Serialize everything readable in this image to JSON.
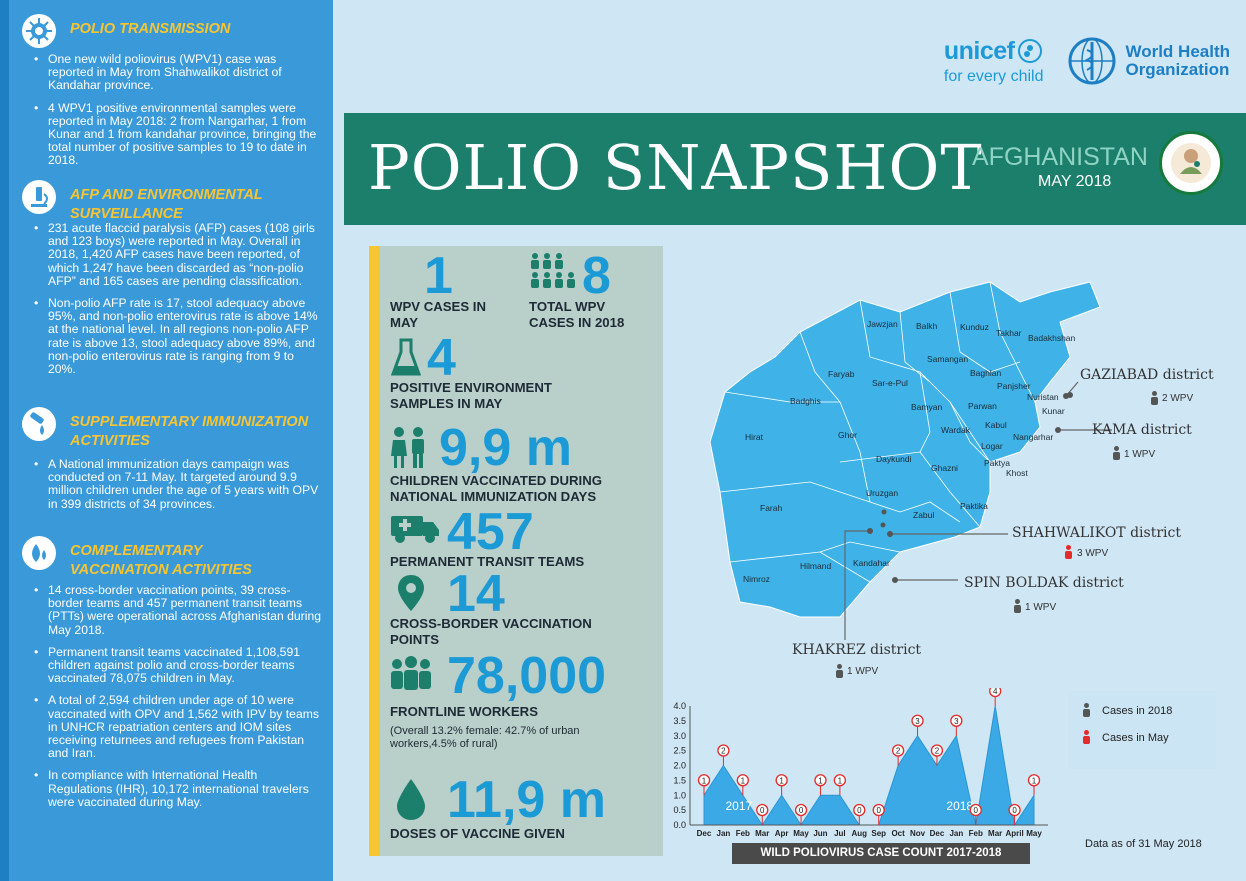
{
  "logos": {
    "unicef_name": "unicef",
    "unicef_tagline": "for every child",
    "who_line1": "World Health",
    "who_line2": "Organization"
  },
  "banner": {
    "title": "POLIO SNAPSHOT",
    "country": "AFGHANISTAN",
    "date": "MAY 2018"
  },
  "sidebar": {
    "sections": [
      {
        "icon": "virus-icon",
        "title": "POLIO TRANSMISSION",
        "items": [
          "One new wild poliovirus (WPV1) case was reported in May from Shahwalikot district of Kandahar province.",
          "4 WPV1 positive environmental samples were reported in May 2018: 2 from Nangarhar, 1 from Kunar and 1 from kandahar province, bringing the total number of positive samples to 19 to date in 2018."
        ]
      },
      {
        "icon": "microscope-icon",
        "title": "AFP AND ENVIRONMENTAL SURVEILLANCE",
        "items": [
          "231 acute flaccid paralysis (AFP) cases (108 girls and 123 boys) were reported in May. Overall in 2018, 1,420 AFP cases have been reported, of which 1,247 have been discarded as “non-polio AFP” and 165 cases are pending classification.",
          "Non-polio AFP rate is 17, stool adequacy above 95%, and non-polio enterovirus rate is above 14% at the national level. In all regions non-polio AFP rate is above 13, stool adequacy above 89%, and non-polio enterovirus rate is ranging from 9 to 20%."
        ]
      },
      {
        "icon": "drop-vaccine-icon",
        "title": "SUPPLEMENTARY IMMUNIZATION ACTIVITIES",
        "items": [
          "A National immunization days campaign was conducted on 7-11 May. It targeted around 9.9 million children under the age of 5 years with OPV in 399 districts of 34 provinces."
        ]
      },
      {
        "icon": "drops-icon",
        "title": "COMPLEMENTARY VACCINATION ACTIVITIES",
        "items": [
          "14 cross-border vaccination points, 39 cross-border teams and 457 permanent transit teams (PTTs) were operational across Afghanistan during May 2018.",
          "Permanent transit teams vaccinated 1,108,591 children against polio and cross-border teams vaccinated 78,075 children in May.",
          "A total of 2,594 children under age of 10 were vaccinated with OPV and 1,562 with IPV by teams in UNHCR repatriation centers and IOM sites receiving returnees and refugees from Pakistan and Iran.",
          "In compliance with International Health Regulations (IHR), 10,172 international travelers were vaccinated during May."
        ]
      }
    ]
  },
  "stats": {
    "wpv_may": {
      "value": "1",
      "label": "WPV CASES IN MAY"
    },
    "wpv_total": {
      "value": "8",
      "label": "TOTAL WPV CASES IN 2018"
    },
    "env": {
      "value": "4",
      "label": "POSITIVE ENVIRONMENT SAMPLES IN MAY"
    },
    "vaccinated": {
      "value": "9,9 m",
      "label": "CHILDREN VACCINATED DURING NATIONAL IMMUNIZATION DAYS"
    },
    "transit": {
      "value": "457",
      "label": "PERMANENT TRANSIT TEAMS"
    },
    "cross": {
      "value": "14",
      "label": "CROSS-BORDER VACCINATION POINTS"
    },
    "workers": {
      "value": "78,000",
      "label": "FRONTLINE WORKERS",
      "note": "(Overall 13.2% female: 42.7% of urban workers,4.5% of rural)"
    },
    "doses": {
      "value": "11,9 m",
      "label": "DOSES OF VACCINE GIVEN"
    }
  },
  "map": {
    "provinces": [
      "Jawzjan",
      "Balkh",
      "Kunduz",
      "Takhar",
      "Badakhshan",
      "Faryab",
      "Samangan",
      "Sar-e-Pul",
      "Baghlan",
      "Panjsher",
      "Nuristan",
      "Badghis",
      "Bamyan",
      "Parwan",
      "Kunar",
      "Hirat",
      "Ghor",
      "Wardak",
      "Kabul",
      "Nangarhar",
      "Logar",
      "Daykundi",
      "Paktya",
      "Ghazni",
      "Khost",
      "Uruzgan",
      "Paktika",
      "Farah",
      "Zabul",
      "Nimroz",
      "Hilmand",
      "Kandahar"
    ],
    "districts": [
      {
        "name": "GAZIABAD district",
        "cases": "2 WPV",
        "status": "2018"
      },
      {
        "name": "KAMA district",
        "cases": "1 WPV",
        "status": "2018"
      },
      {
        "name": "SHAHWALIKOT district",
        "cases": "3 WPV",
        "status": "May"
      },
      {
        "name": "SPIN BOLDAK district",
        "cases": "1 WPV",
        "status": "2018"
      },
      {
        "name": "KHAKREZ district",
        "cases": "1 WPV",
        "status": "2018"
      }
    ]
  },
  "legend": {
    "cases_2018": "Cases in 2018",
    "cases_may": "Cases in May"
  },
  "chart_data": {
    "type": "area",
    "title": "WILD POLIOVIRUS CASE COUNT 2017-2018",
    "categories": [
      "Dec",
      "Jan",
      "Feb",
      "Mar",
      "Apr",
      "May",
      "Jun",
      "Jul",
      "Aug",
      "Sep",
      "Oct",
      "Nov",
      "Dec",
      "Jan",
      "Feb",
      "Mar",
      "April",
      "May"
    ],
    "values": [
      1,
      2,
      1,
      0,
      1,
      0,
      1,
      1,
      0,
      0,
      2,
      3,
      2,
      3,
      0,
      4,
      0,
      1
    ],
    "year_labels": [
      "2017",
      "2018"
    ],
    "ylim": [
      0,
      4
    ],
    "yticks": [
      "0.0",
      "0.5",
      "1.0",
      "1.5",
      "2.0",
      "2.5",
      "3.0",
      "3.5",
      "4.0"
    ],
    "fill_color": "#3aa9e6"
  },
  "footer": {
    "asof": "Data as of 31 May 2018"
  }
}
